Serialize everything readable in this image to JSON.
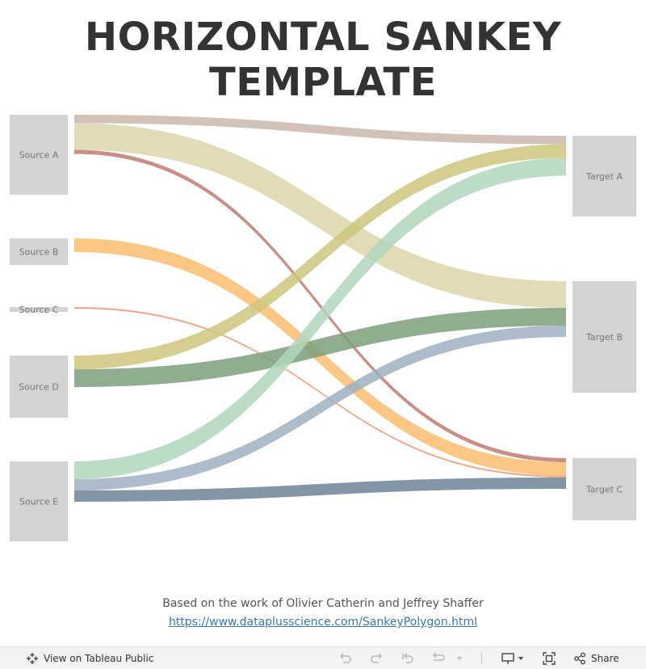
{
  "header": {
    "title": "HORIZONTAL SANKEY TEMPLATE"
  },
  "chart_data": {
    "type": "sankey",
    "sources": [
      {
        "name": "Source A"
      },
      {
        "name": "Source B"
      },
      {
        "name": "Source C"
      },
      {
        "name": "Source D"
      },
      {
        "name": "Source E"
      }
    ],
    "targets": [
      {
        "name": "Target A"
      },
      {
        "name": "Target B"
      },
      {
        "name": "Target C"
      }
    ],
    "flows": [
      {
        "source": "Source A",
        "target": "Target A",
        "value": 21,
        "color": "#c9b9ab"
      },
      {
        "source": "Source A",
        "target": "Target B",
        "value": 66,
        "color": "#ddd5ac"
      },
      {
        "source": "Source A",
        "target": "Target C",
        "value": 10,
        "color": "#c07a70"
      },
      {
        "source": "Source B",
        "target": "Target C",
        "value": 34,
        "color": "#fbbd6e"
      },
      {
        "source": "Source C",
        "target": "Target C",
        "value": 4,
        "color": "#f19570"
      },
      {
        "source": "Source D",
        "target": "Target A",
        "value": 34,
        "color": "#cdc67c"
      },
      {
        "source": "Source D",
        "target": "Target B",
        "value": 44,
        "color": "#7c9f7c"
      },
      {
        "source": "Source E",
        "target": "Target A",
        "value": 44,
        "color": "#b2d6bb"
      },
      {
        "source": "Source E",
        "target": "Target B",
        "value": 28,
        "color": "#9db0c2"
      },
      {
        "source": "Source E",
        "target": "Target C",
        "value": 28,
        "color": "#6f8296"
      }
    ]
  },
  "credits": {
    "text": "Based on the work of Olivier Catherin and Jeffrey Shaffer",
    "link": "https://www.dataplusscience.com/SankeyPolygon.html"
  },
  "toolbar": {
    "view_label": "View on Tableau Public",
    "share_label": "Share"
  }
}
